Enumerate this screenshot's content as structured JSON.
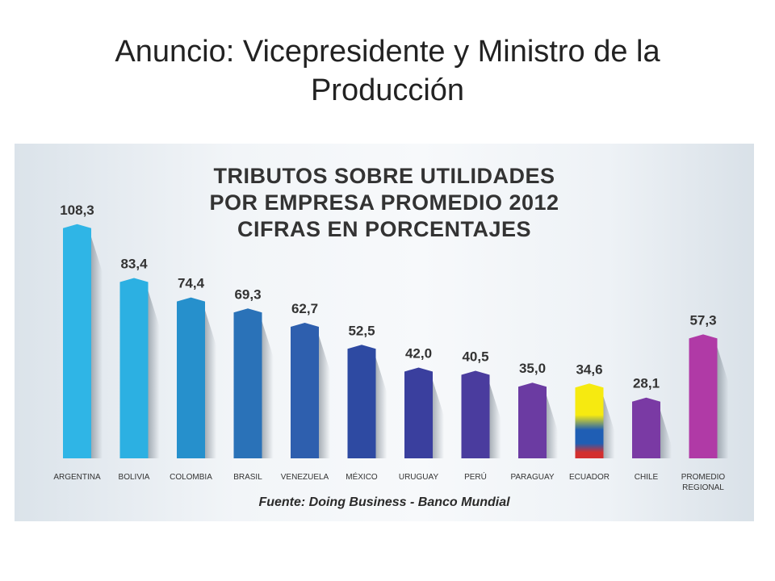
{
  "slide": {
    "title": "Anuncio: Vicepresidente y Ministro de la Producción"
  },
  "chart_data": {
    "type": "bar",
    "title_lines": [
      "TRIBUTOS SOBRE UTILIDADES",
      "POR EMPRESA PROMEDIO 2012",
      "CIFRAS EN PORCENTAJES"
    ],
    "source": "Fuente: Doing Business - Banco Mundial",
    "categories": [
      "ARGENTINA",
      "BOLIVIA",
      "COLOMBIA",
      "BRASIL",
      "VENEZUELA",
      "MÉXICO",
      "URUGUAY",
      "PERÚ",
      "PARAGUAY",
      "ECUADOR",
      "CHILE",
      "PROMEDIO REGIONAL"
    ],
    "category_lines": [
      [
        "ARGENTINA"
      ],
      [
        "BOLIVIA"
      ],
      [
        "COLOMBIA"
      ],
      [
        "BRASIL"
      ],
      [
        "VENEZUELA"
      ],
      [
        "MÉXICO"
      ],
      [
        "URUGUAY"
      ],
      [
        "PERÚ"
      ],
      [
        "PARAGUAY"
      ],
      [
        "ECUADOR"
      ],
      [
        "CHILE"
      ],
      [
        "PROMEDIO",
        "REGIONAL"
      ]
    ],
    "values": [
      108.3,
      83.4,
      74.4,
      69.3,
      62.7,
      52.5,
      42.0,
      40.5,
      35.0,
      34.6,
      28.1,
      57.3
    ],
    "value_labels": [
      "108,3",
      "83,4",
      "74,4",
      "69,3",
      "62,7",
      "52,5",
      "42,0",
      "40,5",
      "35,0",
      "34,6",
      "28,1",
      "57,3"
    ],
    "colors": [
      "#2fb5e6",
      "#2cb0e2",
      "#2690cc",
      "#2a72b8",
      "#2e5fae",
      "#2e4aa2",
      "#3a3f9e",
      "#4a3c9e",
      "#6b3ba2",
      "#ecdf1a",
      "#7a3aa4",
      "#b03aa6"
    ],
    "ecuador_flag_colors": [
      "#f6ea10",
      "#1f5eb4",
      "#d32f2f"
    ],
    "ylim": [
      0,
      110
    ],
    "grid": false,
    "legend": "none"
  }
}
